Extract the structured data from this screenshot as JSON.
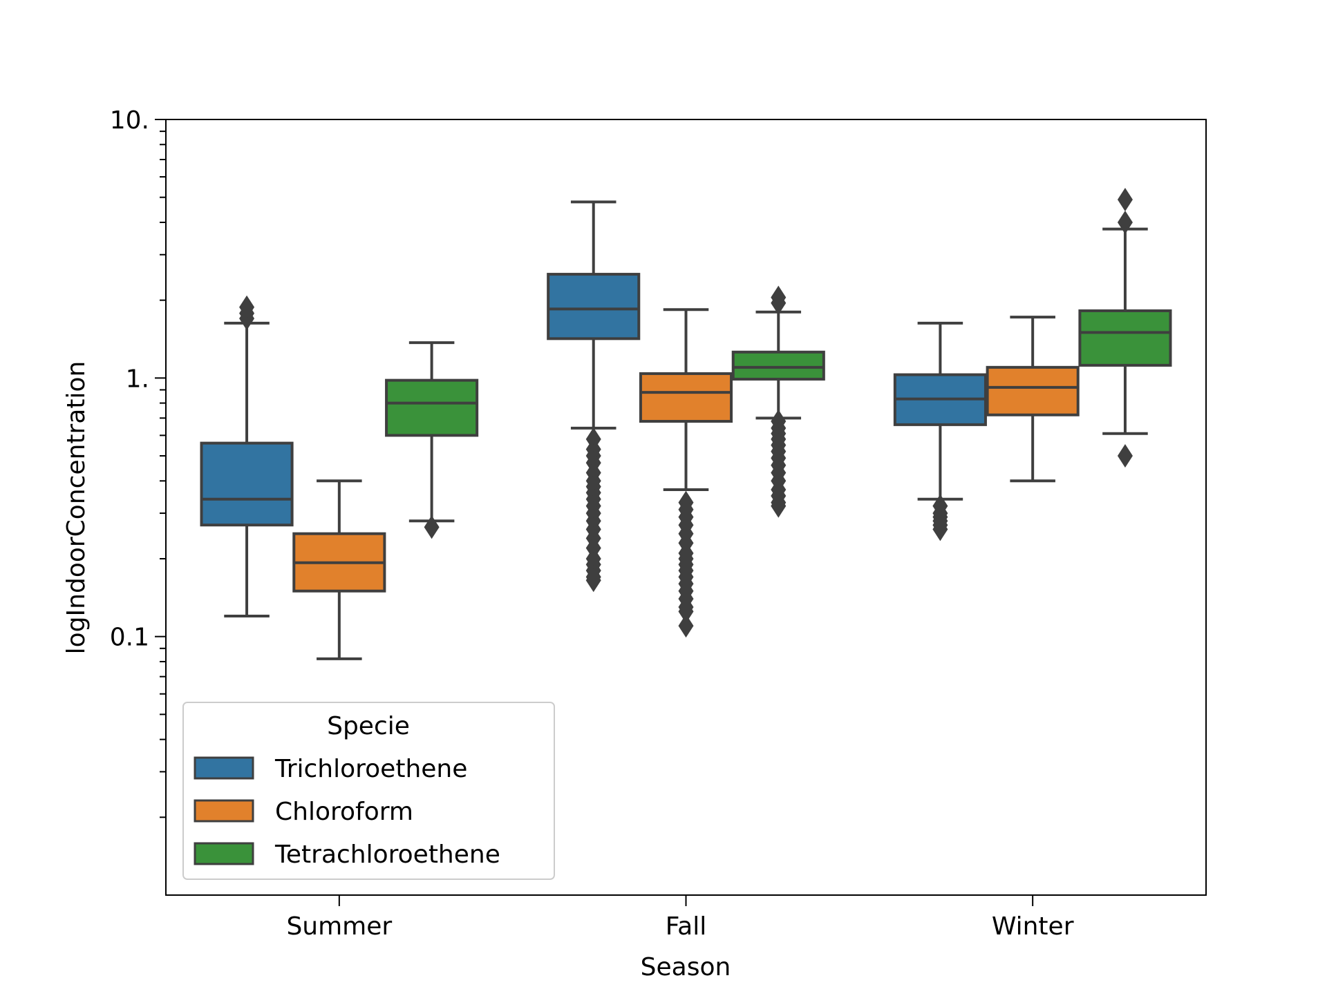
{
  "chart_data": {
    "type": "box",
    "xlabel": "Season",
    "ylabel": "logIndoorConcentration",
    "yscale": "log",
    "ylim": [
      0.01,
      10
    ],
    "yticks": [
      {
        "value": 10,
        "label": "10."
      },
      {
        "value": 1,
        "label": "1."
      },
      {
        "value": 0.1,
        "label": "0.1"
      }
    ],
    "categories": [
      "Summer",
      "Fall",
      "Winter"
    ],
    "legend": {
      "title": "Specie",
      "placement": "lower-left"
    },
    "series": [
      {
        "name": "Trichloroethene",
        "color": "#3274a1",
        "boxes": [
          {
            "whisker_low": 0.12,
            "q1": 0.27,
            "median": 0.34,
            "q3": 0.56,
            "whisker_high": 1.63,
            "outliers": [
              1.7,
              1.78,
              1.88
            ]
          },
          {
            "whisker_low": 0.64,
            "q1": 1.42,
            "median": 1.85,
            "q3": 2.52,
            "whisker_high": 4.8,
            "outliers": [
              0.58,
              0.53,
              0.5,
              0.47,
              0.43,
              0.4,
              0.38,
              0.36,
              0.34,
              0.32,
              0.3,
              0.28,
              0.26,
              0.24,
              0.22,
              0.2,
              0.19,
              0.18,
              0.17,
              0.165
            ]
          },
          {
            "whisker_low": 0.34,
            "q1": 0.66,
            "median": 0.83,
            "q3": 1.03,
            "whisker_high": 1.63,
            "outliers": [
              0.32,
              0.3,
              0.29,
              0.28,
              0.27,
              0.26
            ]
          }
        ]
      },
      {
        "name": "Chloroform",
        "color": "#e1812c",
        "boxes": [
          {
            "whisker_low": 0.082,
            "q1": 0.15,
            "median": 0.193,
            "q3": 0.25,
            "whisker_high": 0.4,
            "outliers": []
          },
          {
            "whisker_low": 0.37,
            "q1": 0.68,
            "median": 0.88,
            "q3": 1.04,
            "whisker_high": 1.84,
            "outliers": [
              0.33,
              0.31,
              0.29,
              0.27,
              0.25,
              0.23,
              0.21,
              0.2,
              0.19,
              0.18,
              0.17,
              0.16,
              0.15,
              0.14,
              0.13,
              0.125,
              0.11
            ]
          },
          {
            "whisker_low": 0.4,
            "q1": 0.72,
            "median": 0.92,
            "q3": 1.1,
            "whisker_high": 1.72,
            "outliers": []
          }
        ]
      },
      {
        "name": "Tetrachloroethene",
        "color": "#3a923a",
        "boxes": [
          {
            "whisker_low": 0.28,
            "q1": 0.6,
            "median": 0.8,
            "q3": 0.98,
            "whisker_high": 1.37,
            "outliers": [
              0.265
            ]
          },
          {
            "whisker_low": 0.7,
            "q1": 0.99,
            "median": 1.1,
            "q3": 1.26,
            "whisker_high": 1.8,
            "outliers": [
              0.68,
              0.64,
              0.61,
              0.58,
              0.55,
              0.52,
              0.49,
              0.46,
              0.43,
              0.4,
              0.37,
              0.35,
              0.33,
              0.32,
              1.95,
              2.05
            ]
          },
          {
            "whisker_low": 0.61,
            "q1": 1.12,
            "median": 1.5,
            "q3": 1.82,
            "whisker_high": 3.77,
            "outliers": [
              0.5,
              4.0,
              4.9
            ]
          }
        ]
      }
    ]
  }
}
